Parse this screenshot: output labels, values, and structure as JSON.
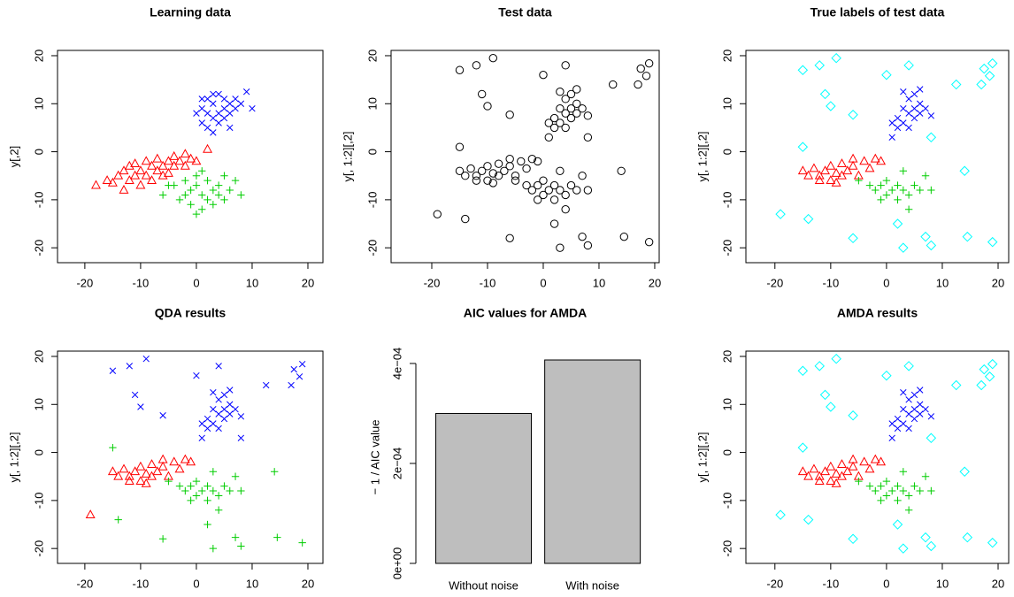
{
  "chart_data": [
    {
      "type": "scatter",
      "title": "Learning data",
      "ylabel": "y[,2]",
      "xlim": [
        -24.9,
        22.7
      ],
      "ylim": [
        -23.1,
        21.1
      ],
      "xticks": [
        -20,
        -10,
        0,
        10,
        20
      ],
      "yticks": [
        -20,
        -10,
        0,
        10,
        20
      ],
      "series": [
        {
          "color": "#ff0000",
          "marker": "triangle",
          "x": [
            -18,
            -16,
            -15,
            -14,
            -13,
            -13,
            -12,
            -12,
            -11,
            -10,
            -10,
            -9,
            -9,
            -8,
            -8,
            -7,
            -7,
            -6,
            -6,
            -5,
            -5,
            -4,
            -4,
            -3,
            -2,
            -2,
            -1,
            0,
            2,
            -11
          ],
          "y": [
            -7,
            -6,
            -6.5,
            -5,
            -8,
            -4,
            -6,
            -3,
            -5,
            -4,
            -7,
            -2,
            -5,
            -3,
            -6,
            -4,
            -1.5,
            -3,
            -5,
            -2,
            -4.5,
            -1,
            -3,
            -2,
            -0.5,
            -3,
            -1.5,
            -2,
            0.5,
            -2.5
          ]
        },
        {
          "color": "#0000ff",
          "marker": "x",
          "x": [
            0,
            1,
            1,
            2,
            2,
            2,
            3,
            3,
            3,
            4,
            4,
            4,
            5,
            5,
            5,
            6,
            6,
            7,
            7,
            8,
            9,
            10,
            6,
            3,
            1
          ],
          "y": [
            8,
            6,
            9,
            5,
            8,
            11,
            7,
            10,
            4,
            8,
            12,
            6,
            9,
            11,
            7,
            10,
            8,
            11,
            9,
            10,
            12.5,
            9,
            5,
            12,
            11
          ]
        },
        {
          "color": "#00cd00",
          "marker": "plus",
          "x": [
            -6,
            -4,
            -3,
            -2,
            -2,
            -1,
            -1,
            0,
            0,
            0,
            1,
            1,
            2,
            2,
            3,
            3,
            4,
            4,
            5,
            5,
            6,
            7,
            8,
            -5,
            1
          ],
          "y": [
            -9,
            -7,
            -10,
            -6,
            -9,
            -8,
            -11,
            -5,
            -7,
            -13,
            -9,
            -4,
            -6,
            -10,
            -8,
            -11,
            -7,
            -9,
            -5,
            -10,
            -8,
            -6,
            -9,
            -7,
            -12
          ]
        }
      ]
    },
    {
      "type": "scatter",
      "title": "Test data",
      "ylabel": "y[, 1:2][,2]",
      "xlim": [
        -27.3,
        20.8
      ],
      "ylim": [
        -23.1,
        21.1
      ],
      "xticks": [
        -20,
        -10,
        0,
        10,
        20
      ],
      "yticks": [
        -20,
        -10,
        0,
        10,
        20
      ],
      "series": [
        {
          "color": "#000000",
          "marker": "circle",
          "x": [
            -15,
            -14,
            -13,
            -12,
            -11,
            -10,
            -10,
            -9,
            -8,
            -8,
            -7,
            -6,
            -5,
            -4,
            -3,
            -2,
            -12,
            -9,
            -6,
            -1
          ],
          "y": [
            -4,
            -5,
            -3.5,
            -5,
            -4,
            -6,
            -3,
            -4.5,
            -5,
            -2.5,
            -4,
            -3,
            -5,
            -2,
            -3.5,
            -1.5,
            -6,
            -6.5,
            -1.5,
            -2
          ]
        },
        {
          "color": "#000000",
          "marker": "circle",
          "x": [
            1,
            2,
            2,
            3,
            3,
            4,
            4,
            4,
            5,
            5,
            5,
            6,
            6,
            3,
            7,
            8,
            6,
            1
          ],
          "y": [
            3,
            5,
            7,
            9,
            6,
            8,
            11,
            5,
            9,
            7,
            12,
            10,
            8,
            12.5,
            9,
            7.5,
            13,
            6
          ]
        },
        {
          "color": "#000000",
          "marker": "circle",
          "x": [
            -5,
            -3,
            -2,
            -1,
            0,
            0,
            1,
            2,
            2,
            3,
            4,
            5,
            6,
            7,
            -1,
            3,
            4,
            8
          ],
          "y": [
            -6,
            -7,
            -8,
            -7,
            -9,
            -6,
            -8,
            -7,
            -10,
            -8,
            -9,
            -7,
            -8,
            -5,
            -10,
            -4,
            -12,
            -8
          ]
        },
        {
          "color": "#000000",
          "marker": "circle",
          "x": [
            -19,
            -15,
            -15,
            -14,
            -12,
            -11,
            -9,
            -10,
            -6,
            -6,
            0,
            2,
            3,
            4,
            7,
            8,
            8,
            12.5,
            14,
            14.5,
            17,
            17.5,
            18.5,
            19,
            19
          ],
          "y": [
            -13,
            17,
            1,
            -14,
            18,
            12,
            19.5,
            9.5,
            7.7,
            -18,
            16,
            -15,
            -20,
            18,
            -17.7,
            -19.5,
            3,
            14,
            -4,
            -17.7,
            14,
            17.3,
            15.8,
            18.4,
            -18.8
          ]
        }
      ]
    },
    {
      "type": "scatter",
      "title": "True labels of test data",
      "ylabel": "y[, 1:2][,2]",
      "xlim": [
        -25.2,
        21.9
      ],
      "ylim": [
        -23.1,
        21.1
      ],
      "xticks": [
        -20,
        -10,
        0,
        10,
        20
      ],
      "yticks": [
        -20,
        -10,
        0,
        10,
        20
      ],
      "series": [
        {
          "color": "#ff0000",
          "marker": "triangle",
          "x": [
            -15,
            -14,
            -13,
            -12,
            -11,
            -10,
            -10,
            -9,
            -8,
            -8,
            -7,
            -6,
            -5,
            -4,
            -3,
            -2,
            -12,
            -9,
            -6,
            -1
          ],
          "y": [
            -4,
            -5,
            -3.5,
            -5,
            -4,
            -6,
            -3,
            -4.5,
            -5,
            -2.5,
            -4,
            -3,
            -5,
            -2,
            -3.5,
            -1.5,
            -6,
            -6.5,
            -1.5,
            -2
          ]
        },
        {
          "color": "#0000ff",
          "marker": "x",
          "x": [
            1,
            2,
            2,
            3,
            3,
            4,
            4,
            4,
            5,
            5,
            5,
            6,
            6,
            3,
            7,
            8,
            6,
            1
          ],
          "y": [
            3,
            5,
            7,
            9,
            6,
            8,
            11,
            5,
            9,
            7,
            12,
            10,
            8,
            12.5,
            9,
            7.5,
            13,
            6
          ]
        },
        {
          "color": "#00cd00",
          "marker": "plus",
          "x": [
            -5,
            -3,
            -2,
            -1,
            0,
            0,
            1,
            2,
            2,
            3,
            4,
            5,
            6,
            7,
            -1,
            3,
            4,
            8
          ],
          "y": [
            -6,
            -7,
            -8,
            -7,
            -9,
            -6,
            -8,
            -7,
            -10,
            -8,
            -9,
            -7,
            -8,
            -5,
            -10,
            -4,
            -12,
            -8
          ]
        },
        {
          "color": "#00ffff",
          "marker": "diamond",
          "x": [
            -19,
            -15,
            -15,
            -14,
            -12,
            -11,
            -9,
            -10,
            -6,
            -6,
            0,
            2,
            3,
            4,
            7,
            8,
            8,
            12.5,
            14,
            14.5,
            17,
            17.5,
            18.5,
            19,
            19
          ],
          "y": [
            -13,
            17,
            1,
            -14,
            18,
            12,
            19.5,
            9.5,
            7.7,
            -18,
            16,
            -15,
            -20,
            18,
            -17.7,
            -19.5,
            3,
            14,
            -4,
            -17.7,
            14,
            17.3,
            15.8,
            18.4,
            -18.8
          ]
        }
      ]
    },
    {
      "type": "scatter",
      "title": "QDA results",
      "ylabel": "y[, 1:2][,2]",
      "xlim": [
        -24.9,
        22.7
      ],
      "ylim": [
        -23.1,
        21.1
      ],
      "xticks": [
        -20,
        -10,
        0,
        10,
        20
      ],
      "yticks": [
        -20,
        -10,
        0,
        10,
        20
      ],
      "series": [
        {
          "color": "#ff0000",
          "marker": "triangle",
          "x": [
            -15,
            -14,
            -13,
            -12,
            -11,
            -10,
            -10,
            -9,
            -8,
            -8,
            -7,
            -6,
            -5,
            -4,
            -3,
            -2,
            -12,
            -9,
            -6,
            -1,
            -19
          ],
          "y": [
            -4,
            -5,
            -3.5,
            -5,
            -4,
            -6,
            -3,
            -4.5,
            -5,
            -2.5,
            -4,
            -3,
            -5,
            -2,
            -3.5,
            -1.5,
            -6,
            -6.5,
            -1.5,
            -2,
            -13
          ]
        },
        {
          "color": "#0000ff",
          "marker": "x",
          "x": [
            1,
            2,
            2,
            3,
            3,
            4,
            4,
            4,
            5,
            5,
            5,
            6,
            6,
            3,
            7,
            8,
            6,
            1,
            -15,
            -12,
            -11,
            -9,
            -10,
            -6,
            0,
            4,
            8,
            12.5,
            17,
            17.5,
            18.5,
            19
          ],
          "y": [
            3,
            5,
            7,
            9,
            6,
            8,
            11,
            5,
            9,
            7,
            12,
            10,
            8,
            12.5,
            9,
            7.5,
            13,
            6,
            17,
            18,
            12,
            19.5,
            9.5,
            7.7,
            16,
            18,
            3,
            14,
            14,
            17.3,
            15.8,
            18.4
          ]
        },
        {
          "color": "#00cd00",
          "marker": "plus",
          "x": [
            -5,
            -3,
            -2,
            -1,
            0,
            0,
            1,
            2,
            2,
            3,
            4,
            5,
            6,
            7,
            -1,
            3,
            4,
            8,
            -15,
            -14,
            -6,
            2,
            3,
            7,
            8,
            14,
            14.5,
            19
          ],
          "y": [
            -6,
            -7,
            -8,
            -7,
            -9,
            -6,
            -8,
            -7,
            -10,
            -8,
            -9,
            -7,
            -8,
            -5,
            -10,
            -4,
            -12,
            -8,
            1,
            -14,
            -18,
            -15,
            -20,
            -17.7,
            -19.5,
            -4,
            -17.7,
            -18.8
          ]
        }
      ]
    },
    {
      "type": "bar",
      "title": "AIC values for AMDA",
      "ylabel": "− 1 / AIC value",
      "categories": [
        "Without noise",
        "With noise"
      ],
      "values": [
        0.0003,
        0.000407
      ],
      "color": "#bebebe",
      "ylim": [
        0,
        0.000407
      ],
      "yticks": [
        {
          "value": 0,
          "label": "0e+00"
        },
        {
          "value": 0.0002,
          "label": "2e−04"
        },
        {
          "value": 0.0004,
          "label": "4e−04"
        }
      ]
    },
    {
      "type": "scatter",
      "title": "AMDA results",
      "ylabel": "y[, 1:2][,2]",
      "xlim": [
        -25.2,
        21.9
      ],
      "ylim": [
        -23.1,
        21.1
      ],
      "xticks": [
        -20,
        -10,
        0,
        10,
        20
      ],
      "yticks": [
        -20,
        -10,
        0,
        10,
        20
      ],
      "series": [
        {
          "color": "#ff0000",
          "marker": "triangle",
          "x": [
            -15,
            -14,
            -13,
            -12,
            -11,
            -10,
            -10,
            -9,
            -8,
            -8,
            -7,
            -6,
            -5,
            -4,
            -3,
            -2,
            -12,
            -9,
            -6,
            -1
          ],
          "y": [
            -4,
            -5,
            -3.5,
            -5,
            -4,
            -6,
            -3,
            -4.5,
            -5,
            -2.5,
            -4,
            -3,
            -5,
            -2,
            -3.5,
            -1.5,
            -6,
            -6.5,
            -1.5,
            -2
          ]
        },
        {
          "color": "#0000ff",
          "marker": "x",
          "x": [
            1,
            2,
            2,
            3,
            3,
            4,
            4,
            4,
            5,
            5,
            5,
            6,
            6,
            3,
            7,
            8,
            6,
            1
          ],
          "y": [
            3,
            5,
            7,
            9,
            6,
            8,
            11,
            5,
            9,
            7,
            12,
            10,
            8,
            12.5,
            9,
            7.5,
            13,
            6
          ]
        },
        {
          "color": "#00cd00",
          "marker": "plus",
          "x": [
            -5,
            -3,
            -2,
            -1,
            0,
            0,
            1,
            2,
            2,
            3,
            4,
            5,
            6,
            7,
            -1,
            3,
            4,
            8
          ],
          "y": [
            -6,
            -7,
            -8,
            -7,
            -9,
            -6,
            -8,
            -7,
            -10,
            -8,
            -9,
            -7,
            -8,
            -5,
            -10,
            -4,
            -12,
            -8
          ]
        },
        {
          "color": "#00ffff",
          "marker": "diamond",
          "x": [
            -19,
            -15,
            -15,
            -14,
            -12,
            -11,
            -9,
            -10,
            -6,
            -6,
            0,
            2,
            3,
            4,
            7,
            8,
            8,
            12.5,
            14,
            14.5,
            17,
            17.5,
            18.5,
            19,
            19
          ],
          "y": [
            -13,
            17,
            1,
            -14,
            18,
            12,
            19.5,
            9.5,
            7.7,
            -18,
            16,
            -15,
            -20,
            18,
            -17.7,
            -19.5,
            3,
            14,
            -4,
            -17.7,
            14,
            17.3,
            15.8,
            18.4,
            -18.8
          ]
        }
      ]
    }
  ]
}
